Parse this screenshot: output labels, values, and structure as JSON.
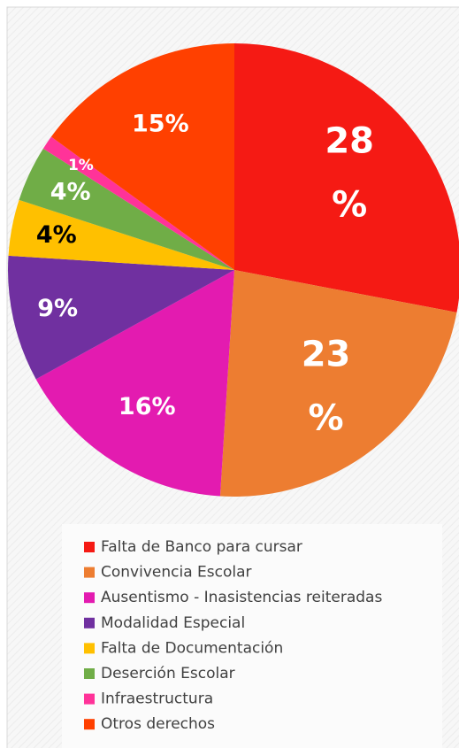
{
  "chart_data": {
    "type": "pie",
    "categories": [
      "Falta de Banco para cursar",
      "Convivencia Escolar",
      "Ausentismo - Inasistencias reiteradas",
      "Modalidad Especial",
      "Falta de Documentación",
      "Deserción Escolar",
      "Infraestructura",
      "Otros derechos"
    ],
    "values": [
      28,
      23,
      16,
      9,
      4,
      4,
      1,
      15
    ],
    "value_labels": [
      "28 %",
      "23 %",
      "16%",
      "9%",
      "4%",
      "4%",
      "1%",
      "15%"
    ],
    "colors": [
      "#f51a14",
      "#ed7d31",
      "#e31bb0",
      "#7030a0",
      "#ffc000",
      "#70ad47",
      "#ff3399",
      "#ff4000"
    ],
    "label_colors": [
      "#ffffff",
      "#ffffff",
      "#ffffff",
      "#ffffff",
      "#000000",
      "#ffffff",
      "#ffffff",
      "#ffffff"
    ],
    "legend": "bottom"
  }
}
